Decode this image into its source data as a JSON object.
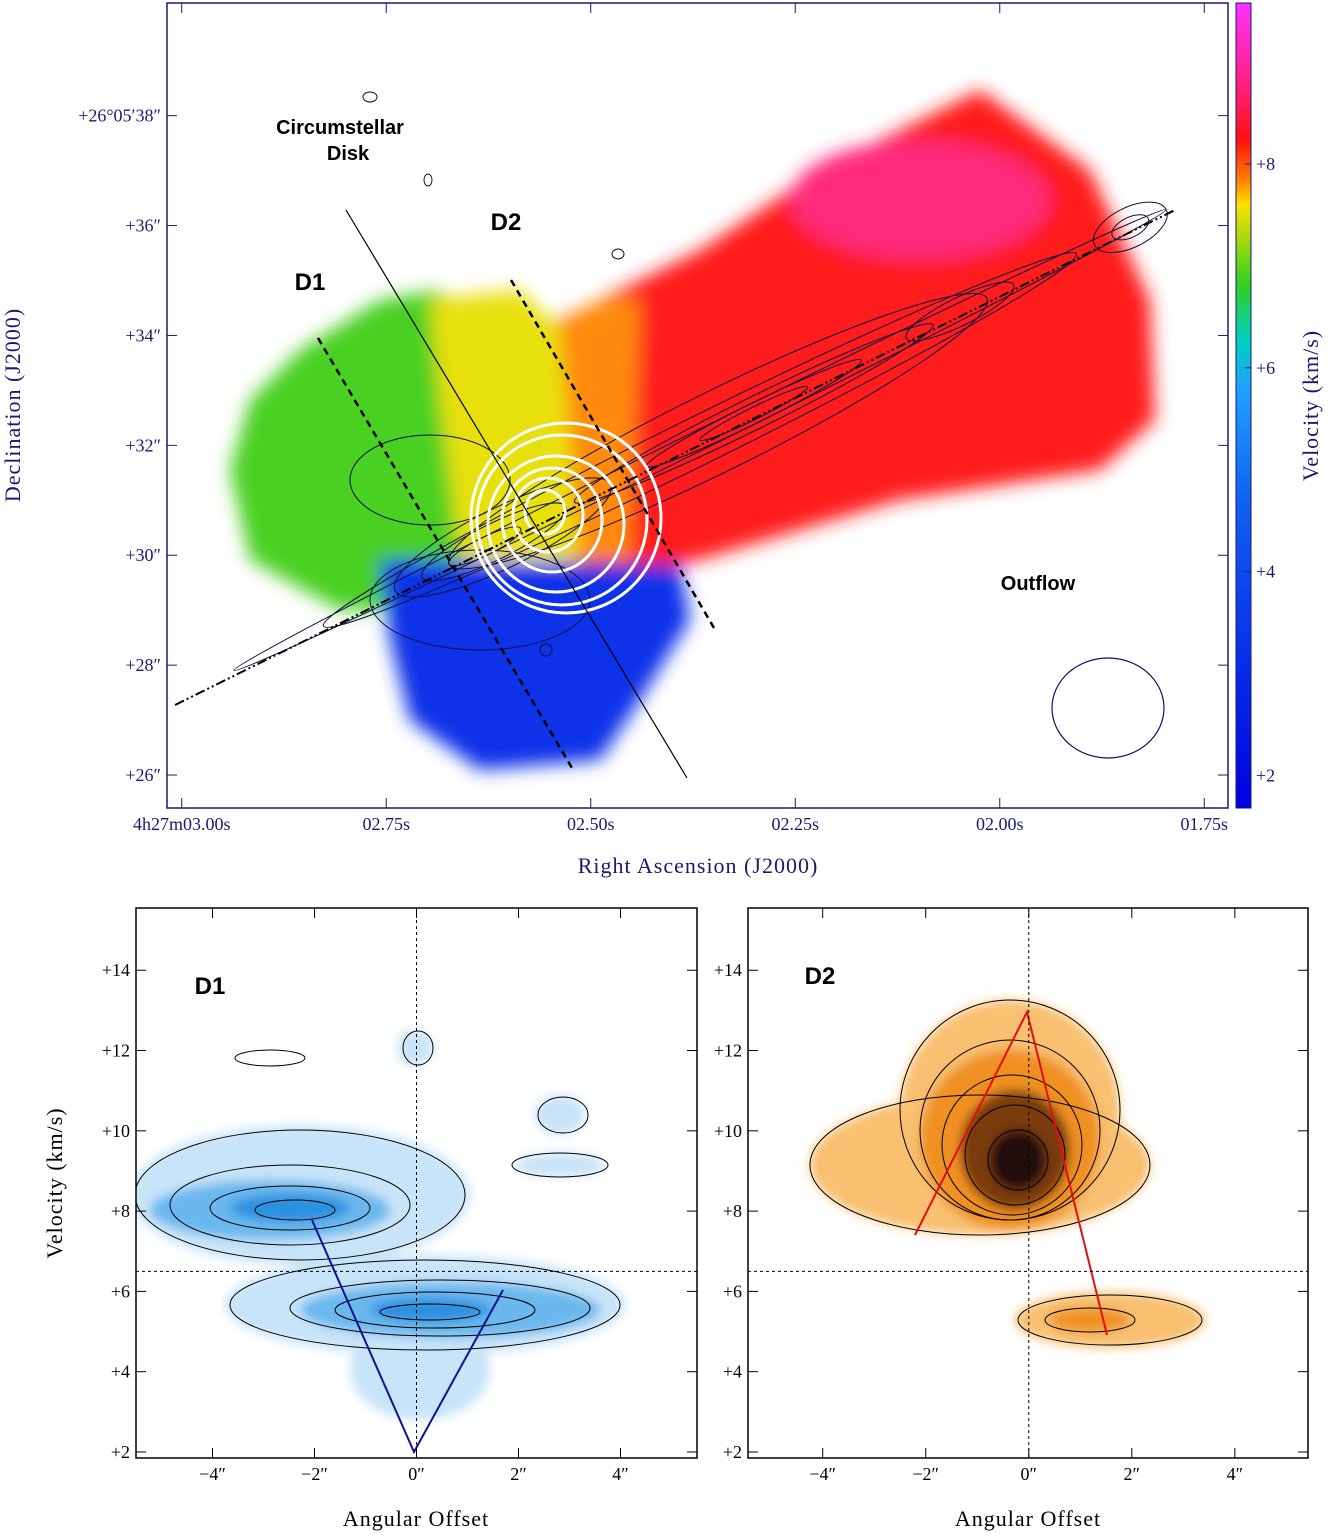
{
  "chart_data": [
    {
      "type": "velocity-map",
      "xlabel": "Right Ascension (J2000)",
      "ylabel": "Declination (J2000)",
      "colorbar_label": "Velocity (km/s)",
      "xlim": [
        3.018,
        1.721
      ],
      "xticks": [
        {
          "value": 3.0,
          "label": "4h27m03.00s"
        },
        {
          "value": 2.75,
          "label": "02.75s"
        },
        {
          "value": 2.5,
          "label": "02.50s"
        },
        {
          "value": 2.25,
          "label": "02.25s"
        },
        {
          "value": 2.0,
          "label": "02.00s"
        },
        {
          "value": 1.75,
          "label": "01.75s"
        }
      ],
      "ylim": [
        25.4,
        40.05
      ],
      "yticks": [
        {
          "value": 26,
          "label": "+26″"
        },
        {
          "value": 28,
          "label": "+28″"
        },
        {
          "value": 30,
          "label": "+30″"
        },
        {
          "value": 32,
          "label": "+32″"
        },
        {
          "value": 34,
          "label": "+34″"
        },
        {
          "value": 36,
          "label": "+36″"
        },
        {
          "value": 38,
          "label": "+26°05′38″"
        }
      ],
      "clim": [
        1.68,
        9.58
      ],
      "cticks": [
        {
          "value": 2,
          "label": "+2"
        },
        {
          "value": 4,
          "label": "+4"
        },
        {
          "value": 6,
          "label": "+6"
        },
        {
          "value": 8,
          "label": "+8"
        }
      ],
      "annotations": [
        "Circumstellar",
        "Disk",
        "D1",
        "D2",
        "Outflow"
      ],
      "color": "#1a1a70"
    },
    {
      "type": "pv-diagram",
      "title": "D1",
      "xlabel": "Angular Offset",
      "ylabel": "Velocity (km/s)",
      "xlim": [
        -5.5,
        5.5
      ],
      "xticks": [
        {
          "value": -4,
          "label": "−4″"
        },
        {
          "value": -2,
          "label": "−2″"
        },
        {
          "value": 0,
          "label": "0″"
        },
        {
          "value": 2,
          "label": "2″"
        },
        {
          "value": 4,
          "label": "4″"
        }
      ],
      "ylim": [
        1.85,
        15.55
      ],
      "yticks": [
        {
          "value": 2,
          "label": "+2"
        },
        {
          "value": 4,
          "label": "+4"
        },
        {
          "value": 6,
          "label": "+6"
        },
        {
          "value": 8,
          "label": "+8"
        },
        {
          "value": 10,
          "label": "+10"
        },
        {
          "value": 12,
          "label": "+12"
        },
        {
          "value": 14,
          "label": "+14"
        }
      ],
      "reference_lines": {
        "x": 0,
        "y": 6.5
      },
      "color": "#000000"
    },
    {
      "type": "pv-diagram",
      "title": "D2",
      "xlabel": "Angular Offset",
      "xlim": [
        -5.45,
        5.42
      ],
      "xticks": [
        {
          "value": -4,
          "label": "−4″"
        },
        {
          "value": -2,
          "label": "−2″"
        },
        {
          "value": 0,
          "label": "0″"
        },
        {
          "value": 2,
          "label": "2″"
        },
        {
          "value": 4,
          "label": "4″"
        }
      ],
      "ylim": [
        1.85,
        15.55
      ],
      "yticks": [
        {
          "value": 2,
          "label": "+2"
        },
        {
          "value": 4,
          "label": "+4"
        },
        {
          "value": 6,
          "label": "+6"
        },
        {
          "value": 8,
          "label": "+8"
        },
        {
          "value": 10,
          "label": "+10"
        },
        {
          "value": 12,
          "label": "+12"
        },
        {
          "value": 14,
          "label": "+14"
        }
      ],
      "reference_lines": {
        "x": 0,
        "y": 6.5
      },
      "color": "#000000"
    }
  ]
}
